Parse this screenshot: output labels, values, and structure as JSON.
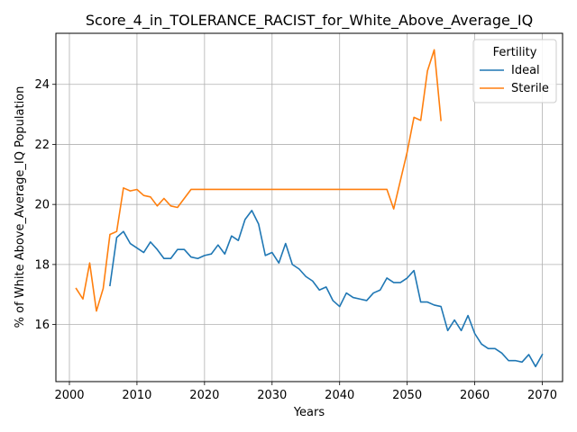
{
  "chart_data": {
    "type": "line",
    "title": "Score_4_in_TOLERANCE_RACIST_for_White_Above_Average_IQ",
    "xlabel": "Years",
    "ylabel": "% of White Above_Average_IQ Population",
    "xlim": [
      1998,
      2073
    ],
    "ylim": [
      14.1,
      25.7
    ],
    "xticks": [
      2000,
      2010,
      2020,
      2030,
      2040,
      2050,
      2060,
      2070
    ],
    "yticks": [
      16,
      18,
      20,
      22,
      24
    ],
    "grid": true,
    "legend": {
      "title": "Fertility",
      "placement": "top-right"
    },
    "series": [
      {
        "name": "Ideal",
        "color": "#1f77b4",
        "x": [
          2006,
          2007,
          2008,
          2009,
          2010,
          2011,
          2012,
          2013,
          2014,
          2015,
          2016,
          2017,
          2018,
          2019,
          2020,
          2021,
          2022,
          2023,
          2024,
          2025,
          2026,
          2027,
          2028,
          2029,
          2030,
          2031,
          2032,
          2033,
          2034,
          2035,
          2036,
          2037,
          2038,
          2039,
          2040,
          2041,
          2042,
          2043,
          2044,
          2045,
          2046,
          2047,
          2048,
          2049,
          2050,
          2051,
          2052,
          2053,
          2054,
          2055,
          2056,
          2057,
          2058,
          2059,
          2060,
          2061,
          2062,
          2063,
          2064,
          2065,
          2066,
          2067,
          2068,
          2069,
          2070
        ],
        "y": [
          17.3,
          18.9,
          19.1,
          18.7,
          18.55,
          18.4,
          18.75,
          18.5,
          18.2,
          18.2,
          18.5,
          18.5,
          18.25,
          18.2,
          18.3,
          18.35,
          18.65,
          18.35,
          18.95,
          18.8,
          19.5,
          19.8,
          19.35,
          18.3,
          18.4,
          18.05,
          18.7,
          18.0,
          17.85,
          17.6,
          17.45,
          17.15,
          17.25,
          16.8,
          16.6,
          17.05,
          16.9,
          16.85,
          16.8,
          17.05,
          17.15,
          17.55,
          17.4,
          17.4,
          17.55,
          17.8,
          16.75,
          16.75,
          16.65,
          16.6,
          15.8,
          16.15,
          15.8,
          16.3,
          15.7,
          15.35,
          15.2,
          15.2,
          15.05,
          14.8,
          14.8,
          14.75,
          15.0,
          14.6,
          15.0
        ]
      },
      {
        "name": "Sterile",
        "color": "#ff7f0e",
        "x": [
          2001,
          2002,
          2003,
          2004,
          2005,
          2006,
          2007,
          2008,
          2009,
          2010,
          2011,
          2012,
          2013,
          2014,
          2015,
          2016,
          2017,
          2018,
          2019,
          2020,
          2021,
          2022,
          2023,
          2024,
          2025,
          2026,
          2027,
          2028,
          2029,
          2030,
          2031,
          2032,
          2033,
          2034,
          2035,
          2036,
          2037,
          2038,
          2039,
          2040,
          2041,
          2042,
          2043,
          2044,
          2045,
          2046,
          2047,
          2048,
          2049,
          2050,
          2051,
          2052,
          2053,
          2054,
          2055
        ],
        "y": [
          17.2,
          16.85,
          18.05,
          16.45,
          17.2,
          19.0,
          19.1,
          20.55,
          20.45,
          20.5,
          20.3,
          20.25,
          19.95,
          20.2,
          19.95,
          19.9,
          20.2,
          20.5,
          20.5,
          20.5,
          20.5,
          20.5,
          20.5,
          20.5,
          20.5,
          20.5,
          20.5,
          20.5,
          20.5,
          20.5,
          20.5,
          20.5,
          20.5,
          20.5,
          20.5,
          20.5,
          20.5,
          20.5,
          20.5,
          20.5,
          20.5,
          20.5,
          20.5,
          20.5,
          20.5,
          20.5,
          20.5,
          19.85,
          20.8,
          21.75,
          22.9,
          22.8,
          24.45,
          25.15,
          22.8
        ]
      }
    ]
  }
}
